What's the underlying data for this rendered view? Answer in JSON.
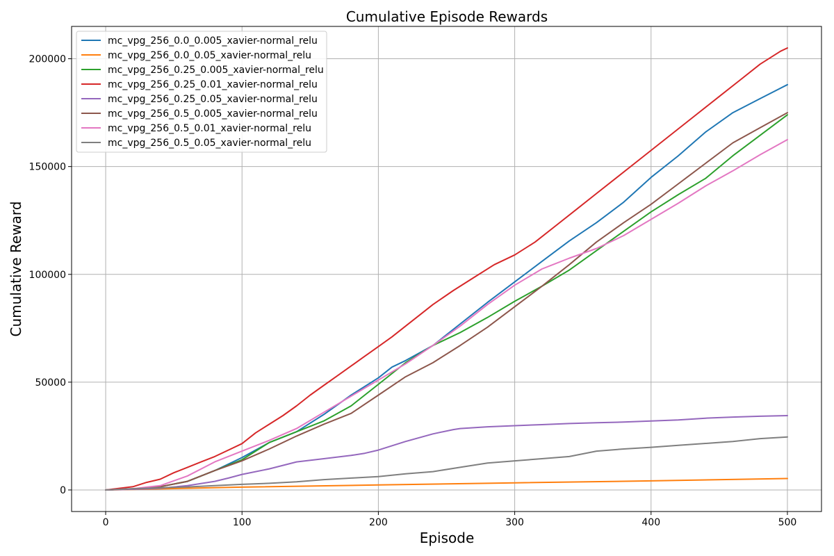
{
  "chart_data": {
    "type": "line",
    "title": "Cumulative Episode Rewards",
    "xlabel": "Episode",
    "ylabel": "Cumulative Reward",
    "xlim": [
      -25,
      525
    ],
    "ylim": [
      -10000,
      215000
    ],
    "x_ticks": [
      0,
      100,
      200,
      300,
      400,
      500
    ],
    "y_ticks": [
      0,
      50000,
      100000,
      150000,
      200000
    ],
    "grid": true,
    "legend_position": "top-left",
    "series": [
      {
        "name": "mc_vpg_256_0.0_0.005_xavier-normal_relu",
        "color": "#1f77b4",
        "x": [
          0,
          20,
          40,
          60,
          80,
          100,
          120,
          140,
          160,
          180,
          200,
          210,
          220,
          240,
          260,
          280,
          300,
          320,
          340,
          360,
          380,
          400,
          420,
          440,
          460,
          480,
          500
        ],
        "y": [
          0,
          500,
          1500,
          4000,
          9000,
          15000,
          22000,
          27000,
          35000,
          44000,
          52000,
          57000,
          60000,
          67000,
          77000,
          87000,
          96500,
          106000,
          115500,
          124000,
          133500,
          145000,
          155000,
          166000,
          175000,
          181500,
          188000
        ]
      },
      {
        "name": "mc_vpg_256_0.0_0.05_xavier-normal_relu",
        "color": "#ff7f0e",
        "x": [
          0,
          100,
          200,
          300,
          400,
          500
        ],
        "y": [
          0,
          1300,
          2300,
          3300,
          4200,
          5300
        ]
      },
      {
        "name": "mc_vpg_256_0.25_0.005_xavier-normal_relu",
        "color": "#2ca02c",
        "x": [
          0,
          20,
          40,
          60,
          80,
          100,
          120,
          140,
          160,
          180,
          200,
          220,
          240,
          260,
          280,
          300,
          320,
          340,
          360,
          380,
          400,
          420,
          440,
          460,
          480,
          500
        ],
        "y": [
          0,
          500,
          1500,
          4000,
          9000,
          14000,
          22000,
          27000,
          32000,
          39000,
          49000,
          59000,
          67000,
          73000,
          80000,
          87500,
          94500,
          102000,
          111000,
          120000,
          129000,
          137000,
          144500,
          155000,
          164500,
          174000
        ]
      },
      {
        "name": "mc_vpg_256_0.25_0.01_xavier-normal_relu",
        "color": "#d62728",
        "x": [
          0,
          20,
          30,
          40,
          50,
          60,
          70,
          80,
          90,
          100,
          110,
          120,
          130,
          140,
          150,
          160,
          170,
          180,
          190,
          200,
          210,
          220,
          230,
          240,
          255,
          270,
          285,
          300,
          315,
          330,
          345,
          360,
          375,
          390,
          405,
          420,
          435,
          450,
          465,
          480,
          495,
          500
        ],
        "y": [
          0,
          1500,
          3500,
          5000,
          8000,
          10500,
          13000,
          15500,
          18500,
          21500,
          26500,
          30500,
          34500,
          39000,
          44000,
          48500,
          53000,
          57500,
          62000,
          66500,
          71000,
          76000,
          81000,
          86000,
          92500,
          98500,
          104500,
          109000,
          115000,
          122500,
          130000,
          137500,
          145000,
          152500,
          160000,
          167500,
          175000,
          182500,
          190000,
          197500,
          203500,
          205000
        ]
      },
      {
        "name": "mc_vpg_256_0.25_0.05_xavier-normal_relu",
        "color": "#9467bd",
        "x": [
          0,
          20,
          40,
          60,
          80,
          90,
          100,
          120,
          140,
          160,
          180,
          190,
          200,
          220,
          240,
          255,
          260,
          280,
          300,
          320,
          340,
          360,
          380,
          400,
          420,
          440,
          460,
          480,
          500
        ],
        "y": [
          0,
          300,
          800,
          2000,
          4000,
          5500,
          7200,
          9800,
          13000,
          14500,
          16000,
          17000,
          18500,
          22500,
          26000,
          28000,
          28500,
          29300,
          29800,
          30300,
          30800,
          31200,
          31500,
          32000,
          32500,
          33300,
          33800,
          34200,
          34500
        ]
      },
      {
        "name": "mc_vpg_256_0.5_0.005_xavier-normal_relu",
        "color": "#8c564b",
        "x": [
          0,
          20,
          40,
          60,
          80,
          100,
          120,
          140,
          160,
          180,
          200,
          220,
          240,
          260,
          280,
          300,
          320,
          340,
          360,
          380,
          400,
          420,
          440,
          460,
          480,
          500
        ],
        "y": [
          0,
          500,
          1500,
          4000,
          9000,
          13500,
          19000,
          25000,
          30500,
          35500,
          44000,
          52500,
          59000,
          67000,
          75500,
          85000,
          94500,
          104500,
          115000,
          124000,
          132500,
          142000,
          151500,
          161000,
          168000,
          175000
        ]
      },
      {
        "name": "mc_vpg_256_0.5_0.01_xavier-normal_relu",
        "color": "#e377c2",
        "x": [
          0,
          20,
          40,
          60,
          80,
          100,
          120,
          140,
          160,
          180,
          200,
          220,
          240,
          260,
          280,
          300,
          320,
          340,
          360,
          380,
          400,
          420,
          440,
          460,
          480,
          500
        ],
        "y": [
          0,
          600,
          2000,
          6500,
          13000,
          18000,
          23000,
          28500,
          36000,
          43500,
          51000,
          58500,
          67000,
          76000,
          86000,
          95000,
          102500,
          107500,
          112000,
          118000,
          125500,
          133000,
          141000,
          148000,
          155500,
          162500
        ]
      },
      {
        "name": "mc_vpg_256_0.5_0.05_xavier-normal_relu",
        "color": "#7f7f7f",
        "x": [
          0,
          20,
          40,
          60,
          80,
          100,
          120,
          140,
          160,
          180,
          200,
          220,
          240,
          260,
          280,
          300,
          320,
          340,
          360,
          380,
          400,
          420,
          440,
          460,
          480,
          500
        ],
        "y": [
          0,
          600,
          1000,
          1400,
          2000,
          2600,
          3100,
          3800,
          4800,
          5500,
          6200,
          7500,
          8500,
          10500,
          12500,
          13500,
          14500,
          15500,
          18000,
          19000,
          19800,
          20700,
          21600,
          22500,
          23800,
          24600
        ]
      }
    ]
  }
}
